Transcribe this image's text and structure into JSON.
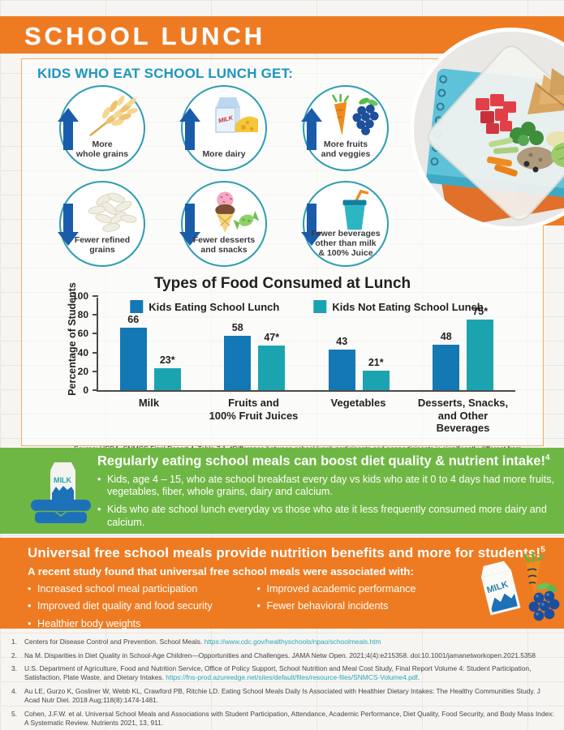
{
  "banner": {
    "title": "SCHOOL LUNCH",
    "bg_color": "#ee7b22"
  },
  "intro": {
    "heading": "KIDS WHO EAT SCHOOL LUNCH GET:"
  },
  "benefits": [
    {
      "label": "More\nwhole grains",
      "direction": "up",
      "icon": "wheat-icon"
    },
    {
      "label": "More dairy",
      "direction": "up",
      "icon": "milk-cheese-icon"
    },
    {
      "label": "More fruits\nand veggies",
      "direction": "up",
      "icon": "carrot-grapes-icon"
    },
    {
      "label": "Fewer refined\ngrains",
      "direction": "down",
      "icon": "rice-grains-icon"
    },
    {
      "label": "Fewer desserts\nand snacks",
      "direction": "down",
      "icon": "ice-cream-candy-icon"
    },
    {
      "label": "Fewer beverages\nother than milk\n& 100% Juice",
      "direction": "down",
      "icon": "beverage-cup-icon"
    }
  ],
  "chart_data": {
    "type": "bar",
    "title": "Types of Food Consumed at Lunch",
    "ylabel": "Percentage of Students",
    "xlabel": "",
    "ylim": [
      0,
      100
    ],
    "yticks": [
      0,
      20,
      40,
      60,
      80,
      100
    ],
    "grid": false,
    "legend_position": "top",
    "categories": [
      "Milk",
      "Fruits and\n100% Fruit Juices",
      "Vegetables",
      "Desserts, Snacks,\nand Other Beverages"
    ],
    "series": [
      {
        "name": "Kids Eating School Lunch",
        "color": "#1478b4",
        "values": [
          66,
          58,
          43,
          48
        ],
        "labels": [
          "66",
          "58",
          "43",
          "48"
        ]
      },
      {
        "name": "Kids Not Eating School Lunch",
        "color": "#1ba4b0",
        "values": [
          23,
          47,
          21,
          75
        ],
        "labels": [
          "23*",
          "47*",
          "21*",
          "75*"
        ]
      }
    ]
  },
  "source_note": "Source: USDA, SNMCS Final Report 4, Table 7.1. *Difference between school lunch participants and nonparticipants is significantly different from zero at the 0.05 level.",
  "green_section": {
    "bg_color": "#6fb744",
    "heading": "Regularly eating school meals can boost diet quality & nutrient intake!",
    "heading_sup": "4",
    "bullets": [
      "Kids, age 4 – 15, who ate school breakfast every day vs kids who ate it 0 to 4 days had more fruits, vegetables, fiber, whole grains, dairy and calcium.",
      "Kids who ate school lunch everyday vs those who ate it less frequently consumed more dairy and calcium."
    ]
  },
  "orange_section": {
    "bg_color": "#ee7b22",
    "heading": "Universal free school meals provide nutrition benefits and more for students!",
    "heading_sup": "5",
    "subheading": "A recent study found that universal free school meals were associated with:",
    "bullets_col1": [
      "Increased school meal participation",
      "Improved diet quality and food security",
      "Healthier body weights"
    ],
    "bullets_col2": [
      "Improved academic performance",
      "Fewer behavioral incidents"
    ]
  },
  "footnotes": [
    {
      "num": "1.",
      "text": "Centers for Disease Control and Prevention. School Meals. ",
      "link": "https://www.cdc.gov/healthyschools/npao/schoolmeals.htm",
      "after": ""
    },
    {
      "num": "2.",
      "text": "Na M. Disparities in Diet Quality in School-Age Children—Opportunities and Challenges. JAMA Netw Open. 2021;4(4):e215358. doi:10.1001/jamanetworkopen.2021.5358",
      "link": "",
      "after": ""
    },
    {
      "num": "3.",
      "text": "U.S. Department of Agriculture, Food and Nutrition Service, Office of Policy Support, School Nutrition and Meal Cost Study, Final Report Volume 4: Student Participation, Satisfaction, Plate Waste, and Dietary Intakes. ",
      "link": "https://fns-prod.azureedge.net/sites/default/files/resource-files/SNMCS-Volume4.pdf",
      "after": "."
    },
    {
      "num": "4.",
      "text": "Au LE, Gurzo K, Gosliner W, Webb KL, Crawford PB, Ritchie LD. Eating School Meals Daily Is Associated with Healthier Dietary Intakes: The Healthy Communities Study. J Acad Nutr Diet. 2018 Aug;118(8):1474-1481.",
      "link": "",
      "after": ""
    },
    {
      "num": "5.",
      "text": "Cohen, J.F.W. et al. Universal School Meals and Associations with Student Participation, Attendance, Academic Performance, Diet Quality,  Food Security, and Body Mass Index: A Systematic Review. Nutrients 2021, 13, 911.",
      "link": "",
      "after": ""
    }
  ]
}
